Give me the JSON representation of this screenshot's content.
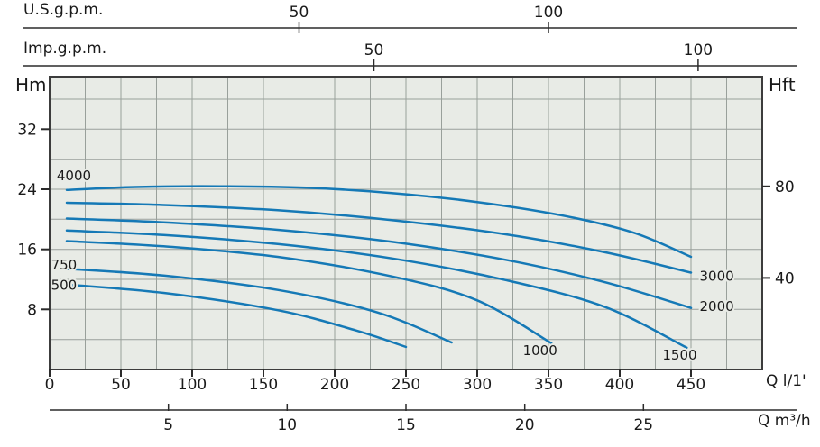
{
  "colors": {
    "curve": "#1579b6",
    "plot_bg": "#e8ebe6",
    "grid_line": "#99a09b",
    "frame": "#3c3c3c",
    "axis_line": "#2b2b2b",
    "text": "#1a1a1a"
  },
  "axis_titles": {
    "us_gpm": "U.S.g.p.m.",
    "imp_gpm": "Imp.g.p.m.",
    "head_m": "Hm",
    "head_ft": "Hft",
    "flow_lmin": "Q l/1'",
    "flow_m3h": "Q m³/h"
  },
  "chart_data": {
    "type": "line",
    "title": "Pump head-flow performance curves",
    "x_unit": "l/min",
    "y_unit": "m",
    "grid": "on",
    "x_axis_lmin": {
      "range": [
        0,
        500
      ],
      "grid_step": 25,
      "ticks": [
        0,
        50,
        100,
        150,
        200,
        250,
        300,
        350,
        400,
        450
      ]
    },
    "x_axis_m3h": {
      "ticks": [
        5,
        10,
        15,
        20,
        25
      ],
      "lmin_per_unit": 16.6667
    },
    "x_axis_us_gpm": {
      "ticks": [
        50,
        100
      ],
      "lmin_per_unit": 3.5
    },
    "x_axis_imp_gpm": {
      "ticks": [
        50,
        100
      ],
      "lmin_per_unit": 4.55
    },
    "y_axis_m": {
      "range": [
        0,
        39
      ],
      "grid_step": 4,
      "ticks": [
        8,
        16,
        24,
        32
      ]
    },
    "y_axis_ft": {
      "ticks": [
        40,
        80
      ],
      "m_per_unit": 0.3048
    },
    "series": [
      {
        "name": "4000",
        "label": "4000",
        "label_q": 5,
        "label_h": 25.2,
        "label_anchor": "start",
        "points_q_h": [
          [
            12,
            23.9
          ],
          [
            60,
            24.3
          ],
          [
            120,
            24.4
          ],
          [
            180,
            24.2
          ],
          [
            240,
            23.5
          ],
          [
            300,
            22.3
          ],
          [
            360,
            20.5
          ],
          [
            410,
            18.2
          ],
          [
            450,
            15.0
          ]
        ]
      },
      {
        "name": "3000",
        "label": "3000",
        "label_q": 456,
        "label_h": 11.8,
        "label_anchor": "start",
        "points_q_h": [
          [
            12,
            22.2
          ],
          [
            80,
            21.9
          ],
          [
            160,
            21.2
          ],
          [
            240,
            19.9
          ],
          [
            320,
            18.0
          ],
          [
            390,
            15.6
          ],
          [
            450,
            12.9
          ]
        ]
      },
      {
        "name": "2000",
        "label": "2000",
        "label_q": 456,
        "label_h": 7.8,
        "label_anchor": "start",
        "points_q_h": [
          [
            12,
            20.1
          ],
          [
            80,
            19.6
          ],
          [
            160,
            18.6
          ],
          [
            240,
            17.0
          ],
          [
            320,
            14.6
          ],
          [
            390,
            11.6
          ],
          [
            450,
            8.2
          ]
        ]
      },
      {
        "name": "1500",
        "label": "1500",
        "label_q": 430,
        "label_h": 1.3,
        "label_anchor": "start",
        "points_q_h": [
          [
            12,
            18.5
          ],
          [
            80,
            17.9
          ],
          [
            160,
            16.7
          ],
          [
            240,
            14.8
          ],
          [
            320,
            11.9
          ],
          [
            390,
            8.3
          ],
          [
            447,
            2.9
          ]
        ]
      },
      {
        "name": "1000",
        "label": "1000",
        "label_q": 332,
        "label_h": 1.9,
        "label_anchor": "start",
        "points_q_h": [
          [
            12,
            17.1
          ],
          [
            80,
            16.4
          ],
          [
            160,
            15.0
          ],
          [
            240,
            12.4
          ],
          [
            300,
            9.2
          ],
          [
            352,
            3.5
          ]
        ]
      },
      {
        "name": "750",
        "label": "750",
        "label_q": 1,
        "label_h": 13.3,
        "label_anchor": "start",
        "points_q_h": [
          [
            12,
            13.4
          ],
          [
            80,
            12.5
          ],
          [
            160,
            10.6
          ],
          [
            230,
            7.6
          ],
          [
            282,
            3.6
          ]
        ]
      },
      {
        "name": "500",
        "label": "500",
        "label_q": 1,
        "label_h": 10.6,
        "label_anchor": "start",
        "points_q_h": [
          [
            12,
            11.3
          ],
          [
            80,
            10.2
          ],
          [
            160,
            7.9
          ],
          [
            215,
            5.2
          ],
          [
            250,
            3.0
          ]
        ]
      }
    ]
  }
}
